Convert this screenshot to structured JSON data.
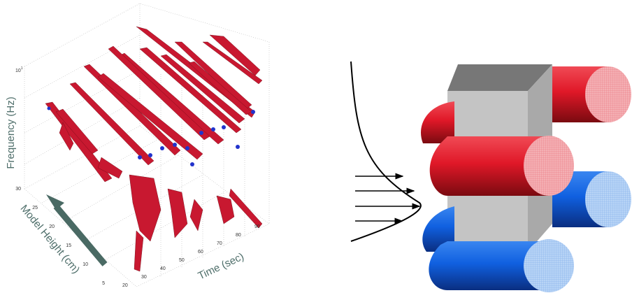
{
  "left_panel": {
    "z_axis_label": "Frequency (Hz)",
    "y_axis_label": "Model Height (cm)",
    "x_axis_label": "Time (sec)",
    "z_tick": {
      "base": "10",
      "exponent": "1"
    },
    "y_ticks": [
      "30",
      "25",
      "20",
      "15",
      "10",
      "5"
    ],
    "x_ticks": [
      "20",
      "30",
      "40",
      "50",
      "60",
      "70",
      "80",
      "90"
    ]
  }
}
